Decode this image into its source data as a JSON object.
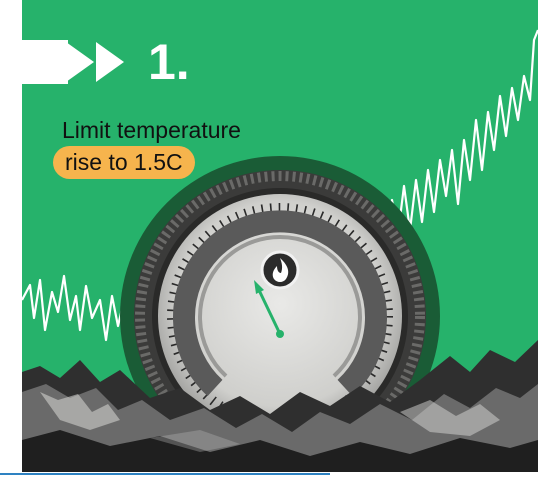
{
  "step": {
    "number_label": "1."
  },
  "headline": {
    "line1": "Limit temperature",
    "line2": "rise to 1.5C"
  },
  "icons": {
    "arrows": "double-play-arrow-icon",
    "center": "flame-icon"
  },
  "colors": {
    "green": "#26b26b",
    "orange": "#f6b44d",
    "white": "#ffffff",
    "dark": "#1b1b1b"
  }
}
